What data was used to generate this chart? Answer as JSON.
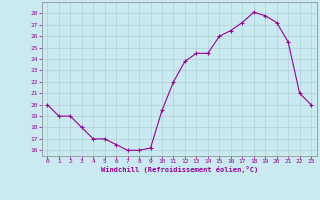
{
  "hours": [
    0,
    1,
    2,
    3,
    4,
    5,
    6,
    7,
    8,
    9,
    10,
    11,
    12,
    13,
    14,
    15,
    16,
    17,
    18,
    19,
    20,
    21,
    22,
    23
  ],
  "values": [
    20,
    19,
    19,
    18,
    17,
    17,
    16.5,
    16,
    16,
    16.2,
    19.5,
    22,
    23.8,
    24.5,
    24.5,
    26,
    26.5,
    27.2,
    28.1,
    27.8,
    27.2,
    25.5,
    21,
    20
  ],
  "line_color": "#990099",
  "marker": "+",
  "marker_size": 3,
  "bg_color": "#c8eaf0",
  "grid_color": "#b0d0d8",
  "xlabel": "Windchill (Refroidissement éolien,°C)",
  "xlabel_color": "#990099",
  "tick_color": "#990099",
  "spine_color": "#888888",
  "ylim": [
    15.5,
    29
  ],
  "xlim": [
    -0.5,
    23.5
  ],
  "yticks": [
    16,
    17,
    18,
    19,
    20,
    21,
    22,
    23,
    24,
    25,
    26,
    27,
    28
  ],
  "xticks": [
    0,
    1,
    2,
    3,
    4,
    5,
    6,
    7,
    8,
    9,
    10,
    11,
    12,
    13,
    14,
    15,
    16,
    17,
    18,
    19,
    20,
    21,
    22,
    23
  ],
  "figsize": [
    3.2,
    2.0
  ],
  "dpi": 100
}
